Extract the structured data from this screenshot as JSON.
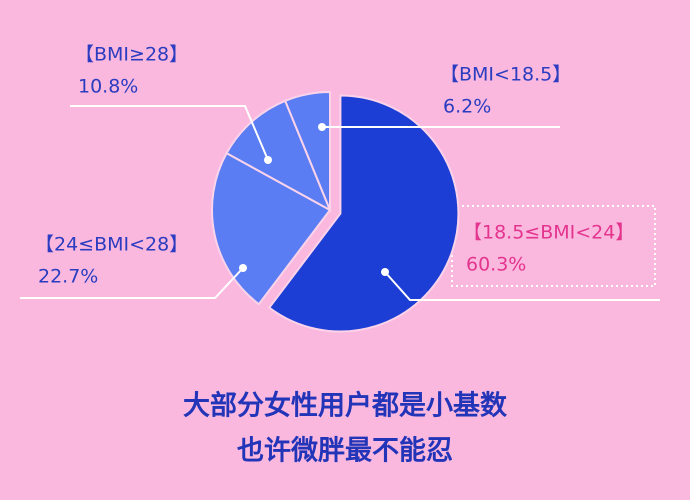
{
  "chart_data": {
    "type": "pie",
    "title": "大部分女性用户都是小基数",
    "subtitle": "也许微胖最不能忍",
    "categories": [
      "【18.5≤BMI<24】",
      "【24≤BMI<28】",
      "【BMI≥28】",
      "【BMI<18.5】"
    ],
    "values": [
      60.3,
      22.7,
      10.8,
      6.2
    ],
    "value_labels": [
      "60.3%",
      "22.7%",
      "10.8%",
      "6.2%"
    ],
    "colors": [
      "#1c3ed4",
      "#5a7df3",
      "#5a7df3",
      "#5a7df3"
    ],
    "label_colors": [
      "#e3348e",
      "#2a3cc0",
      "#2a3cc0",
      "#2a3cc0"
    ]
  }
}
